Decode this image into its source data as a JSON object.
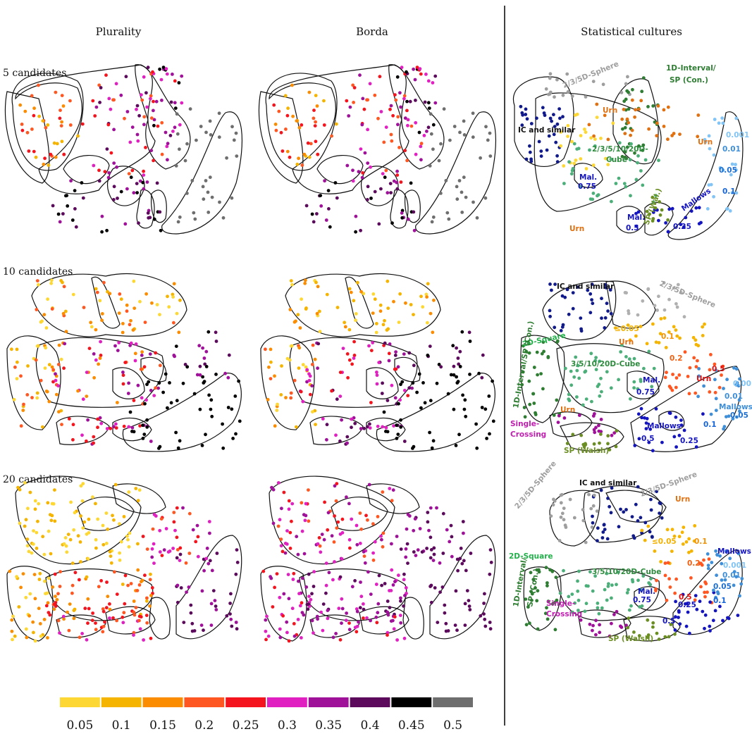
{
  "chart_data": {
    "type": "scatter",
    "columns": [
      "Plurality",
      "Borda",
      "Statistical cultures"
    ],
    "rows": [
      "5 candidates",
      "10 candidates",
      "20 candidates"
    ],
    "colorbar": {
      "ticks": [
        "0.05",
        "0.1",
        "0.15",
        "0.2",
        "0.25",
        "0.3",
        "0.35",
        "0.4",
        "0.45",
        "0.5"
      ],
      "colors": [
        "#fdd835",
        "#f5b400",
        "#fb8c00",
        "#ff5722",
        "#f4141e",
        "#e020c0",
        "#a0119a",
        "#5c0a5c",
        "#000000",
        "#6e6e6e"
      ]
    },
    "culture_labels": {
      "row5": [
        {
          "text": "2/3/5D-Sphere",
          "color": "#9e9e9e"
        },
        {
          "text": "1D-Interval/",
          "color": "#2e7d32"
        },
        {
          "text": "SP (Con.)",
          "color": "#2e7d32"
        },
        {
          "text": "Urn",
          "color": "#e07010"
        },
        {
          "text": "IC and similar",
          "color": "#111111"
        },
        {
          "text": "Urn",
          "color": "#e07010"
        },
        {
          "text": "2/3/5/10/20D-",
          "color": "#2e8b3e"
        },
        {
          "text": "Cube",
          "color": "#2e8b3e"
        },
        {
          "text": "0.001",
          "color": "#81c4f5"
        },
        {
          "text": "0.01",
          "color": "#3f8fd8"
        },
        {
          "text": "0.05",
          "color": "#1e6fd0"
        },
        {
          "text": "0.1",
          "color": "#1565d8"
        },
        {
          "text": "Mal.",
          "color": "#1515c0"
        },
        {
          "text": "0.75",
          "color": "#1515c0"
        },
        {
          "text": "Mallows",
          "color": "#1515c0"
        },
        {
          "text": "0.25",
          "color": "#1515c0"
        },
        {
          "text": "Mal.",
          "color": "#1515c0"
        },
        {
          "text": "0.5",
          "color": "#1515c0"
        },
        {
          "text": "SP (Wal.)",
          "color": "#6b8e23"
        },
        {
          "text": "Urn",
          "color": "#e07010"
        }
      ],
      "row10": [
        {
          "text": "IC and similar",
          "color": "#111111"
        },
        {
          "text": "2/3/5D-Sphere",
          "color": "#9e9e9e"
        },
        {
          "text": "≤0.05",
          "color": "#f2b100"
        },
        {
          "text": "Urn",
          "color": "#e07010"
        },
        {
          "text": "0.1",
          "color": "#f29000"
        },
        {
          "text": "2D-Square",
          "color": "#22b04a"
        },
        {
          "text": "1D-Interval/SP (Con.)",
          "color": "#2e7d32"
        },
        {
          "text": "0.2",
          "color": "#f06010"
        },
        {
          "text": "0.5",
          "color": "#e01010"
        },
        {
          "text": "3/5/10/20D-Cube",
          "color": "#2e8b3e"
        },
        {
          "text": "Urn",
          "color": "#e01010"
        },
        {
          "text": "Mal.",
          "color": "#1515c0"
        },
        {
          "text": "0.75",
          "color": "#1515c0"
        },
        {
          "text": "0.001",
          "color": "#81c4f5"
        },
        {
          "text": "0.01",
          "color": "#3f8fd8"
        },
        {
          "text": "Mallows",
          "color": "#3f8fd8"
        },
        {
          "text": "0.05",
          "color": "#1e6fd0"
        },
        {
          "text": "Urn",
          "color": "#e07010"
        },
        {
          "text": "Single-",
          "color": "#c020b0"
        },
        {
          "text": "Crossing",
          "color": "#c020b0"
        },
        {
          "text": "Mallows",
          "color": "#1515c0"
        },
        {
          "text": "0.1",
          "color": "#1565d8"
        },
        {
          "text": "0.5",
          "color": "#1515c0"
        },
        {
          "text": "0.25",
          "color": "#1515c0"
        },
        {
          "text": "SP (Walsh)",
          "color": "#6b8e23"
        }
      ],
      "row20": [
        {
          "text": "IC and similar",
          "color": "#111111"
        },
        {
          "text": "2/3/5D-Sphere",
          "color": "#9e9e9e"
        },
        {
          "text": "2/3/5D-Sphere",
          "color": "#9e9e9e"
        },
        {
          "text": "Urn",
          "color": "#e07010"
        },
        {
          "text": "2D-Square",
          "color": "#22b04a"
        },
        {
          "text": "≤0.05",
          "color": "#f2b100"
        },
        {
          "text": "0.1",
          "color": "#f29000"
        },
        {
          "text": "Mallows",
          "color": "#1515c0"
        },
        {
          "text": "0.2",
          "color": "#f06010"
        },
        {
          "text": "0.001",
          "color": "#81c4f5"
        },
        {
          "text": "0.01",
          "color": "#3f8fd8"
        },
        {
          "text": "3/5/10/20D-Cube",
          "color": "#2e8b3e"
        },
        {
          "text": "0.05",
          "color": "#1e6fd0"
        },
        {
          "text": "1D-Interval/",
          "color": "#2e7d32"
        },
        {
          "text": "SP (Con.)",
          "color": "#2e7d32"
        },
        {
          "text": "0.5",
          "color": "#e01010"
        },
        {
          "text": "0.1",
          "color": "#1565d8"
        },
        {
          "text": "Mal.",
          "color": "#1515c0"
        },
        {
          "text": "0.75",
          "color": "#1515c0"
        },
        {
          "text": "0.25",
          "color": "#1515c0"
        },
        {
          "text": "0.5",
          "color": "#1515c0"
        },
        {
          "text": "Single-",
          "color": "#c020b0"
        },
        {
          "text": "Crossing",
          "color": "#c020b0"
        },
        {
          "text": "SP (Walsh)",
          "color": "#6b8e23"
        }
      ]
    },
    "grid": false,
    "legend": "bottom colorbar"
  }
}
